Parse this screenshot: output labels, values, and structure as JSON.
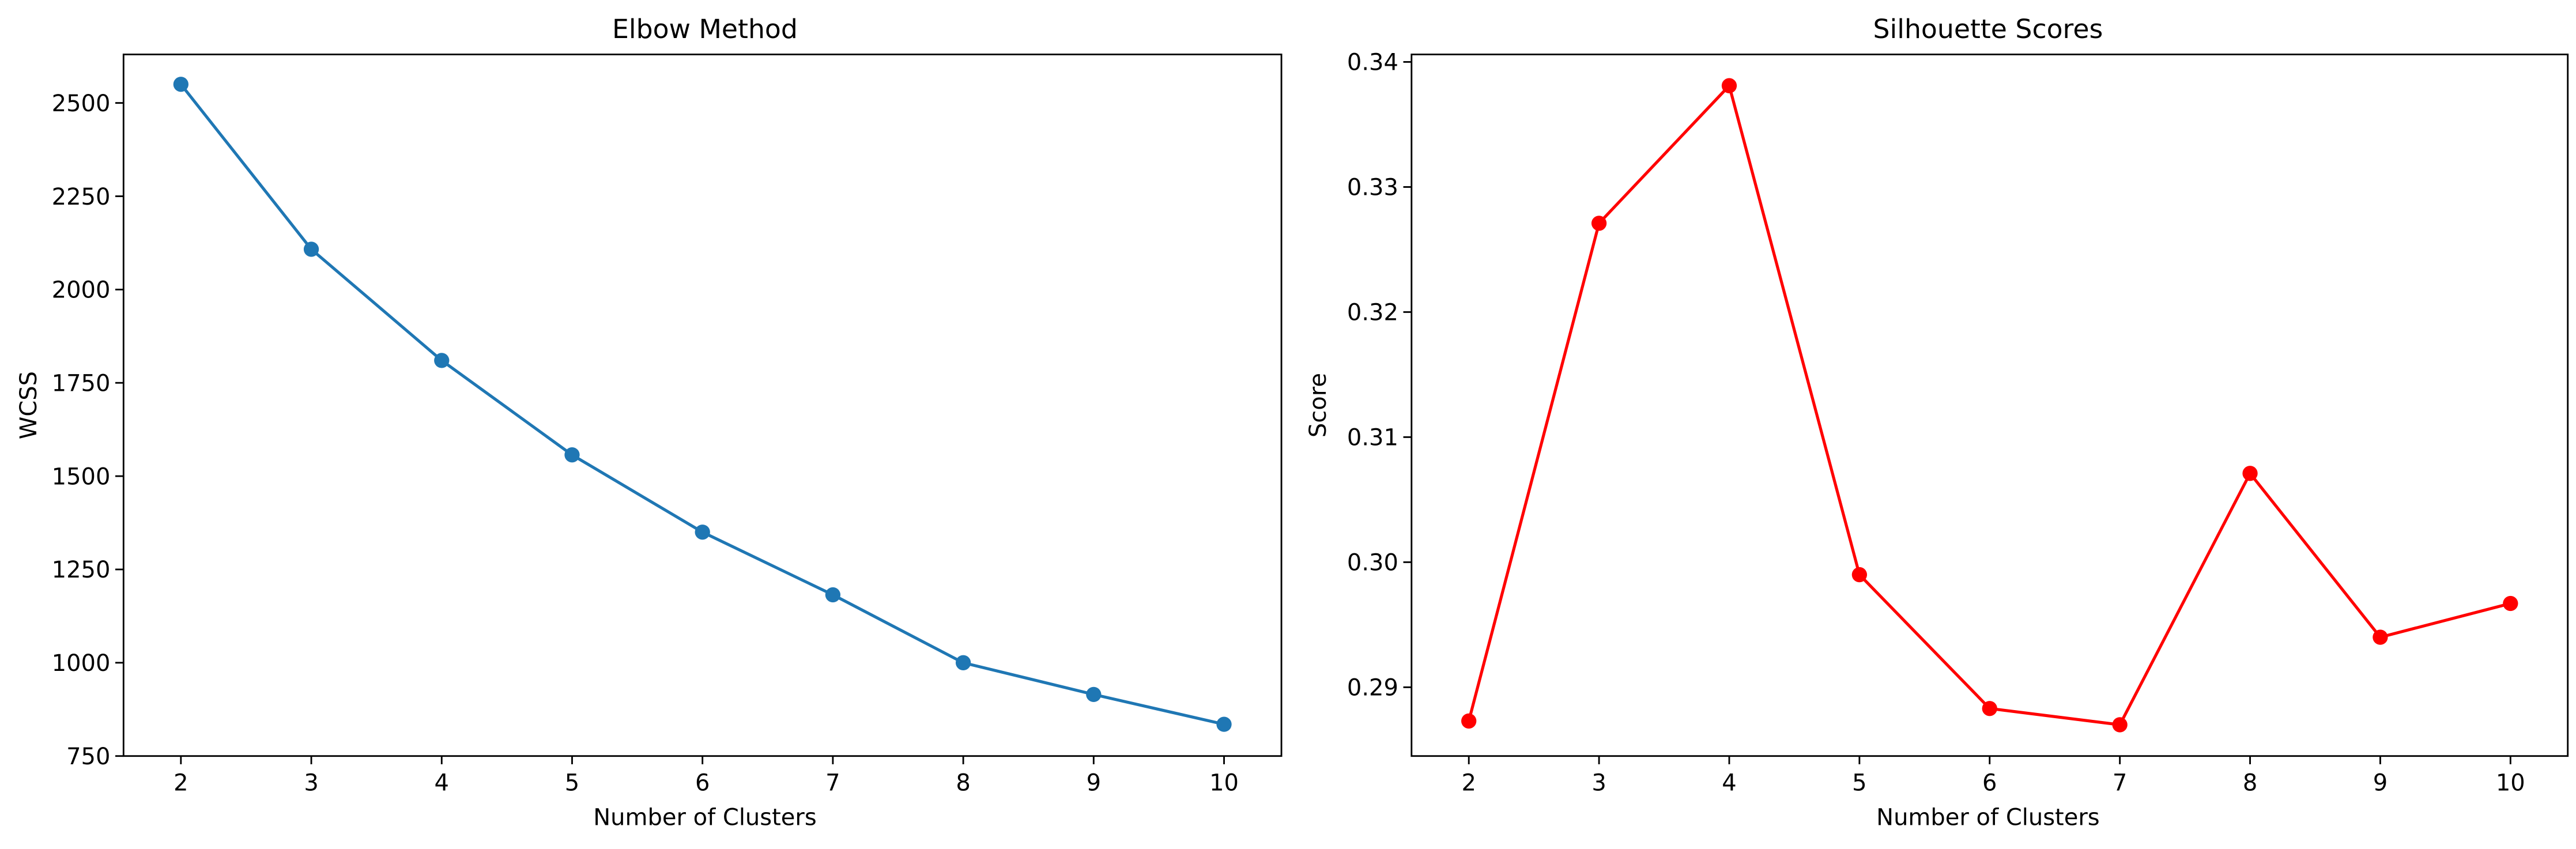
{
  "chart_data": [
    {
      "type": "line",
      "title": "Elbow Method",
      "xlabel": "Number of Clusters",
      "ylabel": "WCSS",
      "x": [
        2,
        3,
        4,
        5,
        6,
        7,
        8,
        9,
        10
      ],
      "series": [
        {
          "values": [
            2550,
            2108,
            1810,
            1557,
            1350,
            1182,
            1000,
            915,
            835
          ],
          "color": "#1f77b4"
        }
      ],
      "xticks": [
        "2",
        "3",
        "4",
        "5",
        "6",
        "7",
        "8",
        "9",
        "10"
      ],
      "yticks": [
        "750",
        "1000",
        "1250",
        "1500",
        "1750",
        "2000",
        "2250",
        "2500"
      ],
      "xlim": [
        1.56,
        10.44
      ],
      "ylim": [
        750,
        2630
      ],
      "grid": false
    },
    {
      "type": "line",
      "title": "Silhouette Scores",
      "xlabel": "Number of Clusters",
      "ylabel": "Score",
      "x": [
        2,
        3,
        4,
        5,
        6,
        7,
        8,
        9,
        10
      ],
      "series": [
        {
          "values": [
            0.2873,
            0.3271,
            0.3381,
            0.299,
            0.2883,
            0.287,
            0.3071,
            0.294,
            0.2967
          ],
          "color": "#ff0000"
        }
      ],
      "xticks": [
        "2",
        "3",
        "4",
        "5",
        "6",
        "7",
        "8",
        "9",
        "10"
      ],
      "yticks": [
        "0.29",
        "0.30",
        "0.31",
        "0.32",
        "0.33",
        "0.34"
      ],
      "xlim": [
        1.56,
        10.44
      ],
      "ylim": [
        0.2845,
        0.3406
      ],
      "grid": false
    }
  ]
}
